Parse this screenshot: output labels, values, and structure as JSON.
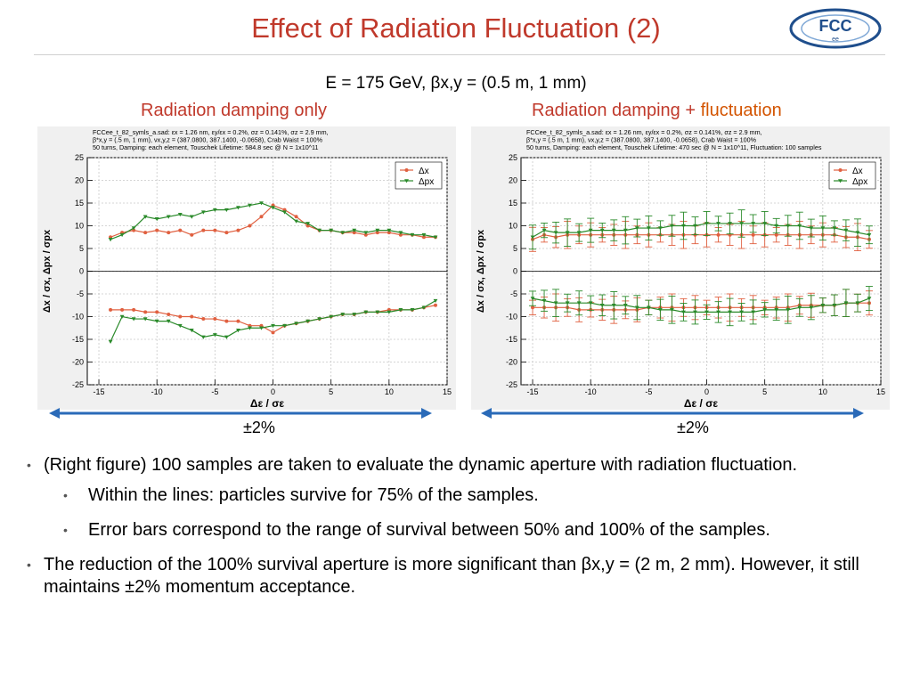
{
  "slide": {
    "title": "Effect of Radiation Fluctuation (2)",
    "logo_text_main": "FCC",
    "logo_text_sub": "ee",
    "subtitle": "E = 175 GeV, βx,y = (0.5 m, 1 mm)",
    "left_label": "Radiation damping only",
    "right_label_pre": "Radiation damping + ",
    "right_label_em": "fluctuation",
    "pm_left": "±2%",
    "pm_right": "±2%",
    "bullets": [
      {
        "text": "(Right figure) 100 samples are taken to evaluate the dynamic aperture with radiation fluctuation.",
        "sub": [
          "Within the lines: particles survive for 75% of the samples.",
          "Error bars correspond to the range of survival between 50% and 100% of the samples."
        ]
      },
      {
        "text": "The reduction of the 100% survival aperture is more significant than βx,y = (2 m, 2 mm). However, it still maintains ±2% momentum acceptance.",
        "sub": []
      }
    ]
  },
  "colors": {
    "title": "#c0392b",
    "dx": "#e06040",
    "dpx": "#2a8a2a",
    "accent": "#d35400",
    "arrow": "#2a6ab8"
  },
  "chart_data": [
    {
      "type": "line",
      "header": [
        "FCCee_t_82_symls_a.sad: εx = 1.26 nm, εy/εx = 0.2%, σz = 0.141%, σz = 2.9 mm,",
        "β*x,y = (.5 m, 1 mm), νx,y,z = (387.0800, 387.1400, -0.0658), Crab Waist = 100%",
        "50 turns, Damping: each element, Touschek Lifetime: 584.8 sec @ N = 1x10^11"
      ],
      "xlabel": "Δε / σε",
      "ylabel": "Δx / σx, Δpx / σpx",
      "xlim": [
        -16,
        15
      ],
      "ylim": [
        -25,
        25
      ],
      "xticks": [
        -15,
        -10,
        -5,
        0,
        5,
        10,
        15
      ],
      "yticks": [
        -25,
        -20,
        -15,
        -10,
        -5,
        0,
        5,
        10,
        15,
        20,
        25
      ],
      "legend": [
        "Δx",
        "Δpx"
      ],
      "legend_position": "top-right",
      "grid": true,
      "error_bars": false,
      "x": [
        -14,
        -13,
        -12,
        -11,
        -10,
        -9,
        -8,
        -7,
        -6,
        -5,
        -4,
        -3,
        -2,
        -1,
        0,
        1,
        2,
        3,
        4,
        5,
        6,
        7,
        8,
        9,
        10,
        11,
        12,
        13,
        14
      ],
      "series": [
        {
          "name": "Δx",
          "color": "#e06040",
          "upper": [
            7.5,
            8.5,
            9,
            8.5,
            9,
            8.5,
            9,
            8,
            9,
            9,
            8.5,
            9,
            10,
            12,
            14.5,
            13.5,
            12,
            10,
            9,
            9,
            8.5,
            8.5,
            8,
            8.5,
            8.5,
            8,
            8,
            7.5,
            7.5
          ],
          "lower": [
            -8.5,
            -8.5,
            -8.5,
            -9,
            -9,
            -9.5,
            -10,
            -10,
            -10.5,
            -10.5,
            -11,
            -11,
            -12,
            -12,
            -13.5,
            -12,
            -11.5,
            -11,
            -10.5,
            -10,
            -9.5,
            -9.5,
            -9,
            -9,
            -8.5,
            -8.5,
            -8.5,
            -8,
            -7.5
          ]
        },
        {
          "name": "Δpx",
          "color": "#2a8a2a",
          "upper": [
            7,
            8,
            9.5,
            12,
            11.5,
            12,
            12.5,
            12,
            13,
            13.5,
            13.5,
            14,
            14.5,
            15,
            14,
            13,
            11,
            10.5,
            9,
            9,
            8.5,
            9,
            8.5,
            9,
            9,
            8.5,
            8,
            8,
            7.5
          ],
          "lower": [
            -15.5,
            -10,
            -10.5,
            -10.5,
            -11,
            -11,
            -12,
            -13,
            -14.5,
            -14,
            -14.5,
            -13,
            -12.5,
            -12.5,
            -12,
            -12,
            -11.5,
            -11,
            -10.5,
            -10,
            -9.5,
            -9.5,
            -9,
            -9,
            -9,
            -8.5,
            -8.5,
            -8,
            -6.5
          ]
        }
      ]
    },
    {
      "type": "line",
      "header": [
        "FCCee_t_82_symls_a.sad: εx = 1.26 nm, εy/εx = 0.2%, σz = 0.141%, σz = 2.9 mm,",
        "β*x,y = (.5 m, 1 mm), νx,y,z = (387.0800, 387.1400, -0.0658), Crab Waist = 100%",
        "50 turns, Damping: each element, Touschek Lifetime: 470 sec @ N = 1x10^11, Fluctuation: 100 samples"
      ],
      "xlabel": "Δε / σε",
      "ylabel": "Δx / σx, Δpx / σpx",
      "xlim": [
        -16,
        15
      ],
      "ylim": [
        -25,
        25
      ],
      "xticks": [
        -15,
        -10,
        -5,
        0,
        5,
        10,
        15
      ],
      "yticks": [
        -25,
        -20,
        -15,
        -10,
        -5,
        0,
        5,
        10,
        15,
        20,
        25
      ],
      "legend": [
        "Δx",
        "Δpx"
      ],
      "legend_position": "top-right",
      "grid": true,
      "error_bars": true,
      "x": [
        -15,
        -14,
        -13,
        -12,
        -11,
        -10,
        -9,
        -8,
        -7,
        -6,
        -5,
        -4,
        -3,
        -2,
        -1,
        0,
        1,
        2,
        3,
        4,
        5,
        6,
        7,
        8,
        9,
        10,
        11,
        12,
        13,
        14
      ],
      "series": [
        {
          "name": "Δx",
          "color": "#e06040",
          "upper": [
            7,
            8,
            7.5,
            8,
            8,
            8,
            8,
            8,
            8,
            8,
            8,
            8,
            8,
            8,
            8,
            8,
            8,
            8,
            8,
            8,
            8,
            8,
            8,
            8,
            8,
            8,
            8,
            7.5,
            7.5,
            7
          ],
          "lower": [
            -8,
            -8,
            -8,
            -8,
            -8.5,
            -8.5,
            -8.5,
            -8.5,
            -8.5,
            -8.5,
            -8,
            -8,
            -8,
            -8,
            -8,
            -8,
            -8,
            -8,
            -8,
            -8,
            -8,
            -8,
            -8,
            -7.5,
            -7.5,
            -7.5,
            -7.5,
            -7,
            -7,
            -7
          ]
        },
        {
          "name": "Δpx",
          "color": "#2a8a2a",
          "upper": [
            7.5,
            9,
            8.5,
            8.5,
            8.5,
            9,
            9,
            9,
            9,
            9.5,
            9.5,
            9.5,
            10,
            10,
            10,
            10.5,
            10.5,
            10.5,
            10.5,
            10.5,
            10.5,
            10,
            10,
            10,
            9.5,
            9.5,
            9.5,
            9,
            8.5,
            8
          ],
          "lower": [
            -6,
            -6.5,
            -7,
            -7,
            -7,
            -7,
            -7.5,
            -7.5,
            -7.5,
            -8,
            -8,
            -8.5,
            -8.5,
            -9,
            -9,
            -9,
            -9,
            -9,
            -9,
            -9,
            -8.5,
            -8.5,
            -8.5,
            -8,
            -8,
            -7.5,
            -7.5,
            -7,
            -7,
            -6
          ]
        }
      ]
    }
  ]
}
